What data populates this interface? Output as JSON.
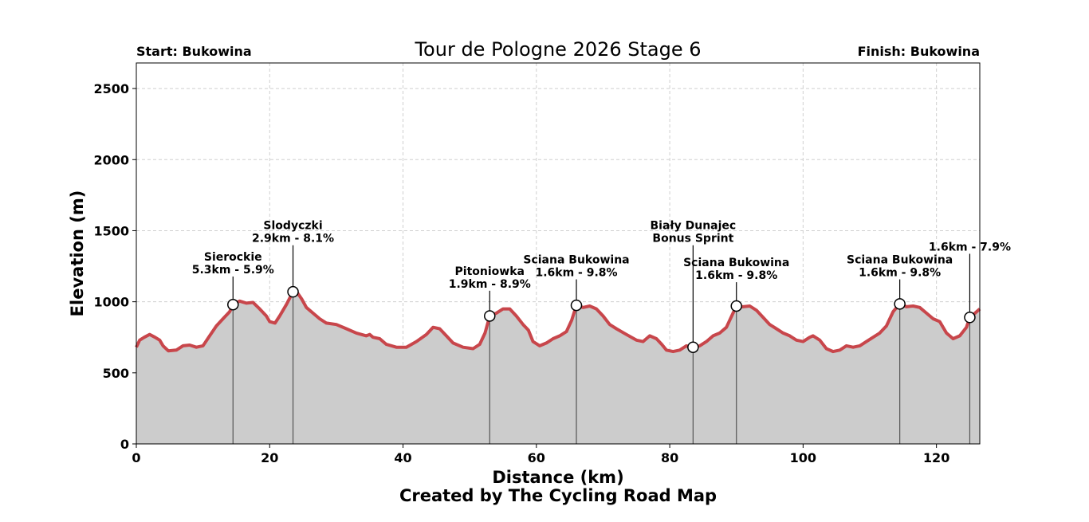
{
  "chart_data": {
    "type": "area",
    "title": "Tour de Pologne 2026 Stage 6",
    "start_label": "Start: Bukowina",
    "finish_label": "Finish: Bukowina",
    "xlabel": "Distance (km)",
    "ylabel": "Elevation (m)",
    "credit": "Created by The Cycling Road Map",
    "xlim": [
      0,
      126.5
    ],
    "ylim": [
      0,
      2680
    ],
    "x_ticks": [
      0,
      20,
      40,
      60,
      80,
      100,
      120
    ],
    "y_ticks": [
      0,
      500,
      1000,
      1500,
      2000,
      2500
    ],
    "grid": true,
    "line_color": "#c8464b",
    "fill_color": "#cccccc",
    "profile": [
      [
        0,
        680
      ],
      [
        0.5,
        730
      ],
      [
        1.2,
        750
      ],
      [
        2,
        770
      ],
      [
        2.8,
        750
      ],
      [
        3.5,
        730
      ],
      [
        4,
        690
      ],
      [
        4.8,
        655
      ],
      [
        6,
        660
      ],
      [
        7,
        690
      ],
      [
        8,
        695
      ],
      [
        9,
        680
      ],
      [
        10,
        690
      ],
      [
        11,
        760
      ],
      [
        12,
        830
      ],
      [
        13,
        880
      ],
      [
        14,
        930
      ],
      [
        14.5,
        980
      ],
      [
        15.5,
        1005
      ],
      [
        16.5,
        990
      ],
      [
        17.5,
        995
      ],
      [
        18.5,
        950
      ],
      [
        19.5,
        900
      ],
      [
        20,
        860
      ],
      [
        20.8,
        850
      ],
      [
        21.5,
        900
      ],
      [
        22.5,
        980
      ],
      [
        23.5,
        1070
      ],
      [
        24.2,
        1060
      ],
      [
        24.8,
        1020
      ],
      [
        25.5,
        960
      ],
      [
        26.5,
        920
      ],
      [
        27.5,
        880
      ],
      [
        28.5,
        850
      ],
      [
        30,
        840
      ],
      [
        31.5,
        810
      ],
      [
        33,
        780
      ],
      [
        34.5,
        760
      ],
      [
        35,
        770
      ],
      [
        35.5,
        750
      ],
      [
        36.5,
        740
      ],
      [
        37.5,
        700
      ],
      [
        39,
        680
      ],
      [
        40.5,
        680
      ],
      [
        42,
        720
      ],
      [
        43.5,
        770
      ],
      [
        44.5,
        820
      ],
      [
        45.5,
        810
      ],
      [
        46.5,
        760
      ],
      [
        47.5,
        710
      ],
      [
        49,
        680
      ],
      [
        50.5,
        670
      ],
      [
        51.5,
        700
      ],
      [
        52.3,
        780
      ],
      [
        53,
        900
      ],
      [
        54,
        920
      ],
      [
        55,
        950
      ],
      [
        56,
        950
      ],
      [
        57,
        900
      ],
      [
        58,
        840
      ],
      [
        58.8,
        800
      ],
      [
        59.5,
        720
      ],
      [
        60.5,
        690
      ],
      [
        61.5,
        710
      ],
      [
        62.5,
        740
      ],
      [
        63.5,
        760
      ],
      [
        64.5,
        790
      ],
      [
        65.3,
        870
      ],
      [
        66,
        975
      ],
      [
        67,
        960
      ],
      [
        68,
        970
      ],
      [
        69,
        950
      ],
      [
        70,
        900
      ],
      [
        71,
        840
      ],
      [
        72,
        810
      ],
      [
        73.5,
        770
      ],
      [
        75,
        730
      ],
      [
        76,
        720
      ],
      [
        77,
        760
      ],
      [
        78,
        740
      ],
      [
        78.8,
        700
      ],
      [
        79.5,
        660
      ],
      [
        80.5,
        650
      ],
      [
        81.5,
        660
      ],
      [
        82.5,
        690
      ],
      [
        83.5,
        680
      ],
      [
        84.5,
        690
      ],
      [
        85.5,
        720
      ],
      [
        86.5,
        760
      ],
      [
        87.5,
        780
      ],
      [
        88.5,
        820
      ],
      [
        89.5,
        920
      ],
      [
        90,
        970
      ],
      [
        91,
        965
      ],
      [
        92,
        970
      ],
      [
        93,
        940
      ],
      [
        94,
        890
      ],
      [
        95,
        840
      ],
      [
        96,
        810
      ],
      [
        97,
        780
      ],
      [
        98,
        760
      ],
      [
        99,
        730
      ],
      [
        100,
        720
      ],
      [
        101,
        750
      ],
      [
        101.5,
        760
      ],
      [
        102.5,
        730
      ],
      [
        103.5,
        670
      ],
      [
        104.5,
        650
      ],
      [
        105.5,
        660
      ],
      [
        106.5,
        690
      ],
      [
        107.5,
        680
      ],
      [
        108.5,
        690
      ],
      [
        109.5,
        720
      ],
      [
        110.5,
        750
      ],
      [
        111.5,
        780
      ],
      [
        112.5,
        830
      ],
      [
        113.5,
        930
      ],
      [
        114.5,
        985
      ],
      [
        115.5,
        965
      ],
      [
        116.5,
        970
      ],
      [
        117.5,
        960
      ],
      [
        118.5,
        920
      ],
      [
        119.5,
        880
      ],
      [
        120.5,
        860
      ],
      [
        121.5,
        780
      ],
      [
        122.5,
        740
      ],
      [
        123.5,
        760
      ],
      [
        124.5,
        820
      ],
      [
        125,
        890
      ],
      [
        125.8,
        920
      ],
      [
        126.5,
        950
      ]
    ],
    "climbs": [
      {
        "x": 14.5,
        "y": 980,
        "label_top": "Sierockie",
        "label_bottom": "5.3km - 5.9%",
        "label_y": 1200
      },
      {
        "x": 23.5,
        "y": 1070,
        "label_top": "Slodyczki",
        "label_bottom": "2.9km - 8.1%",
        "label_y": 1420
      },
      {
        "x": 53,
        "y": 900,
        "label_top": "Pitoniowka",
        "label_bottom": "1.9km - 8.9%",
        "label_y": 1100
      },
      {
        "x": 66,
        "y": 975,
        "label_top": "Sciana Bukowina",
        "label_bottom": "1.6km - 9.8%",
        "label_y": 1180
      },
      {
        "x": 83.5,
        "y": 680,
        "label_top": "Biały Dunajec",
        "label_bottom": "Bonus Sprint",
        "label_y": 1420
      },
      {
        "x": 90,
        "y": 970,
        "label_top": "Sciana Bukowina",
        "label_bottom": "1.6km - 9.8%",
        "label_y": 1160
      },
      {
        "x": 114.5,
        "y": 985,
        "label_top": "Sciana Bukowina",
        "label_bottom": "1.6km - 9.8%",
        "label_y": 1180
      },
      {
        "x": 125,
        "y": 890,
        "label_top": "",
        "label_bottom": "1.6km - 7.9%",
        "label_y": 1360
      }
    ]
  }
}
